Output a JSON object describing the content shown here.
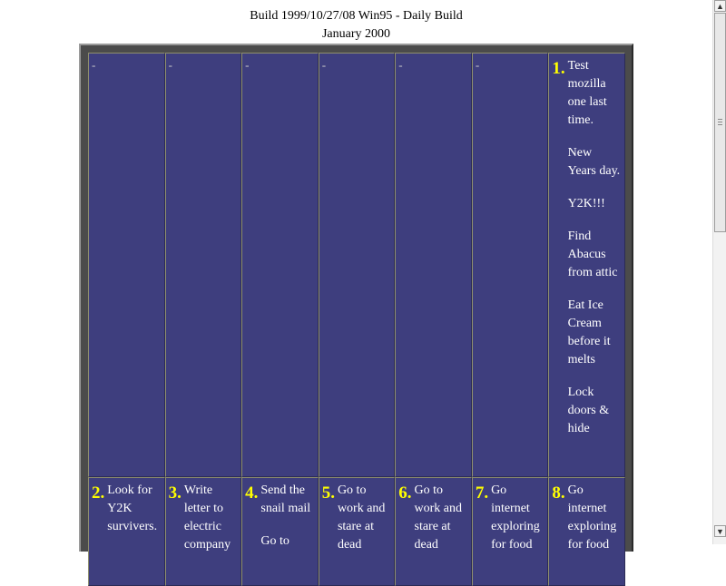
{
  "header": {
    "build_line": "Build 1999/10/27/08 Win95 - Daily Build",
    "month_line": "January 2000"
  },
  "week1": {
    "blanks": [
      "-",
      "-",
      "-",
      "-",
      "-",
      "-"
    ],
    "day1": {
      "number": "1.",
      "events": [
        "Test mozilla one last time.",
        "New Years day.",
        "Y2K!!!",
        "Find Abacus from attic",
        "Eat Ice Cream before it melts",
        "Lock doors & hide"
      ]
    }
  },
  "week2": [
    {
      "number": "2.",
      "events": [
        "Look for Y2K survivers."
      ]
    },
    {
      "number": "3.",
      "events": [
        "Write letter to electric company"
      ]
    },
    {
      "number": "4.",
      "events": [
        "Send the snail mail",
        "Go to"
      ]
    },
    {
      "number": "5.",
      "events": [
        "Go to work and stare at dead"
      ]
    },
    {
      "number": "6.",
      "events": [
        "Go to work and stare at dead"
      ]
    },
    {
      "number": "7.",
      "events": [
        "Go internet exploring for food"
      ]
    },
    {
      "number": "8.",
      "events": [
        "Go internet exploring for food"
      ]
    }
  ],
  "scrollbar": {
    "up_icon": "▲",
    "down_icon": "▼"
  }
}
